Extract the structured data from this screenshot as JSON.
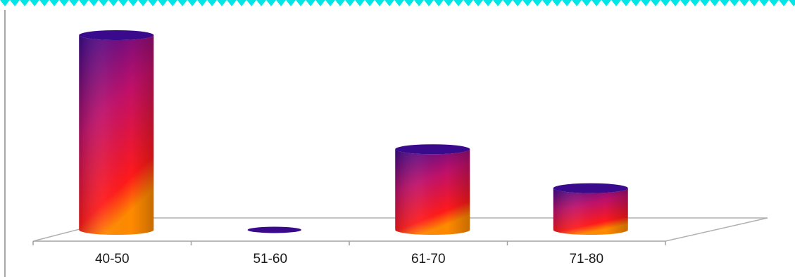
{
  "colors": {
    "border_band": "#00e5e5",
    "cylinder_top": "#3a0a8c",
    "cylinder_mid": "#c0106a",
    "cylinder_bottom": "#ff1a1a",
    "cylinder_glow": "#ff8a00",
    "floor_line": "#a0a0a0"
  },
  "chart_data": {
    "type": "bar",
    "style": "3d-cylinder",
    "title": "",
    "xlabel": "",
    "ylabel": "",
    "categories": [
      "40-50",
      "51-60",
      "61-70",
      "71-80"
    ],
    "values": [
      7,
      0,
      2.9,
      1.5
    ],
    "ylim": [
      0,
      7
    ],
    "grid": false,
    "legend": "none"
  }
}
